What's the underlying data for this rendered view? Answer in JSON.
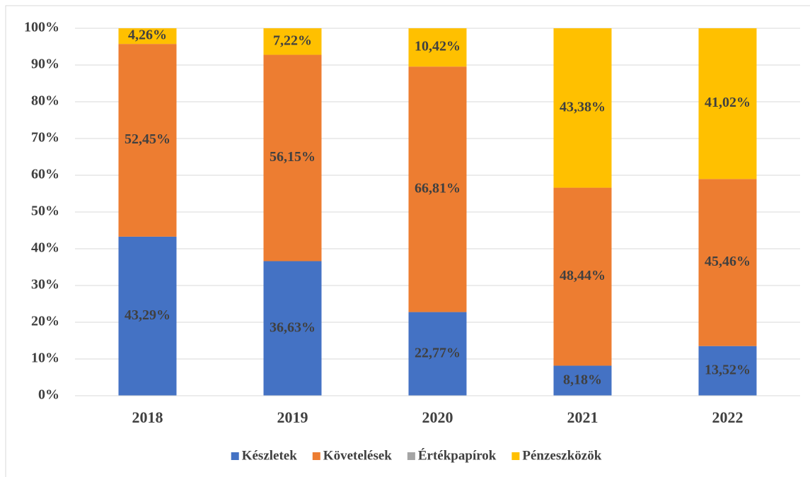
{
  "chart_data": {
    "type": "stacked_bar",
    "categories": [
      "2018",
      "2019",
      "2020",
      "2021",
      "2022"
    ],
    "series": [
      {
        "name": "Készletek",
        "color": "#4472c4",
        "values": [
          43.29,
          36.63,
          22.77,
          8.18,
          13.52
        ],
        "value_labels": [
          "43,29%",
          "36,63%",
          "22,77%",
          "8,18%",
          "13,52%"
        ]
      },
      {
        "name": "Követelések",
        "color": "#ed7d31",
        "values": [
          52.45,
          56.15,
          66.81,
          48.44,
          45.46
        ],
        "value_labels": [
          "52,45%",
          "56,15%",
          "66,81%",
          "48,44%",
          "45,46%"
        ]
      },
      {
        "name": "Értékpapírok",
        "color": "#a5a5a5",
        "values": [
          0,
          0,
          0,
          0,
          0
        ]
      },
      {
        "name": "Pénzeszközök",
        "color": "#ffc000",
        "values": [
          4.26,
          7.22,
          10.42,
          43.38,
          41.02
        ],
        "value_labels": [
          "4,26%",
          "7,22%",
          "10,42%",
          "43,38%",
          "41,02%"
        ]
      }
    ],
    "ylim": [
      0,
      100
    ],
    "yticks": [
      {
        "value": 0,
        "label": "0%"
      },
      {
        "value": 10,
        "label": "10%"
      },
      {
        "value": 20,
        "label": "20%"
      },
      {
        "value": 30,
        "label": "30%"
      },
      {
        "value": 40,
        "label": "40%"
      },
      {
        "value": 50,
        "label": "50%"
      },
      {
        "value": 60,
        "label": "60%"
      },
      {
        "value": 70,
        "label": "70%"
      },
      {
        "value": 80,
        "label": "80%"
      },
      {
        "value": 90,
        "label": "90%"
      },
      {
        "value": 100,
        "label": "100%"
      }
    ],
    "grid": true,
    "legend": "bottom"
  }
}
